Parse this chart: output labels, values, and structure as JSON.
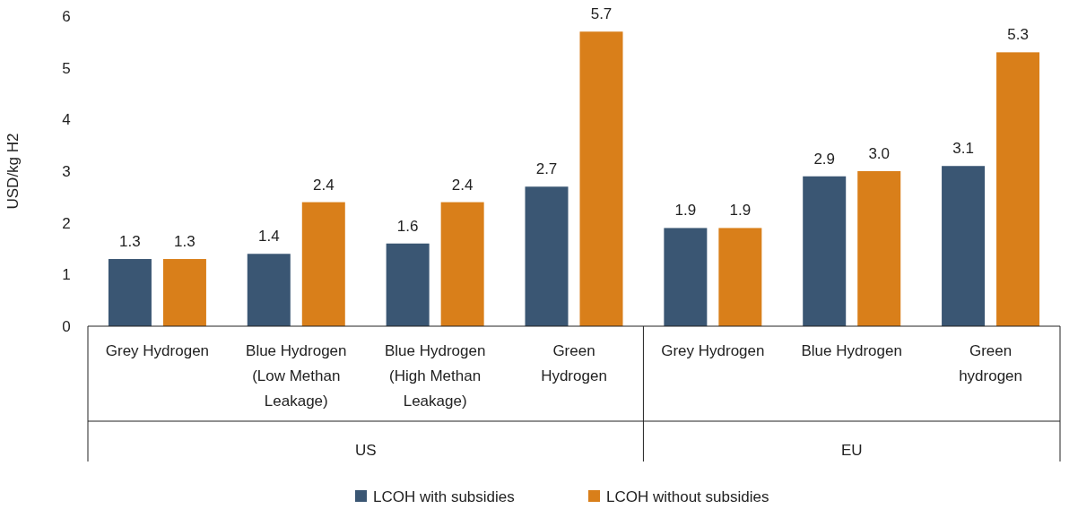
{
  "chart_data": {
    "type": "bar",
    "ylabel": "USD/kg H2",
    "categories": [
      "Grey Hydrogen",
      "Blue Hydrogen (Low Methan Leakage)",
      "Blue Hydrogen (High Methan Leakage)",
      "Green Hydrogen",
      "Grey Hydrogen",
      "Blue Hydrogen",
      "Green hydrogen"
    ],
    "series": [
      {
        "name": "LCOH with subsidies",
        "color": "#3a5673",
        "values": [
          1.3,
          1.4,
          1.6,
          2.7,
          1.9,
          2.9,
          3.1
        ],
        "value_labels": [
          "1.3",
          "1.4",
          "1.6",
          "2.7",
          "1.9",
          "2.9",
          "3.1"
        ]
      },
      {
        "name": "LCOH without subsidies",
        "color": "#d97f1a",
        "values": [
          1.3,
          2.4,
          2.4,
          5.7,
          1.9,
          3.0,
          5.3
        ],
        "value_labels": [
          "1.3",
          "2.4",
          "2.4",
          "5.7",
          "1.9",
          "3.0",
          "5.3"
        ]
      }
    ],
    "annotations": [
      "US",
      "EU"
    ],
    "ylim": [
      0,
      6
    ],
    "yticks": [
      0,
      1,
      2,
      3,
      4,
      5,
      6
    ],
    "grid": false,
    "legend": "bottom"
  }
}
